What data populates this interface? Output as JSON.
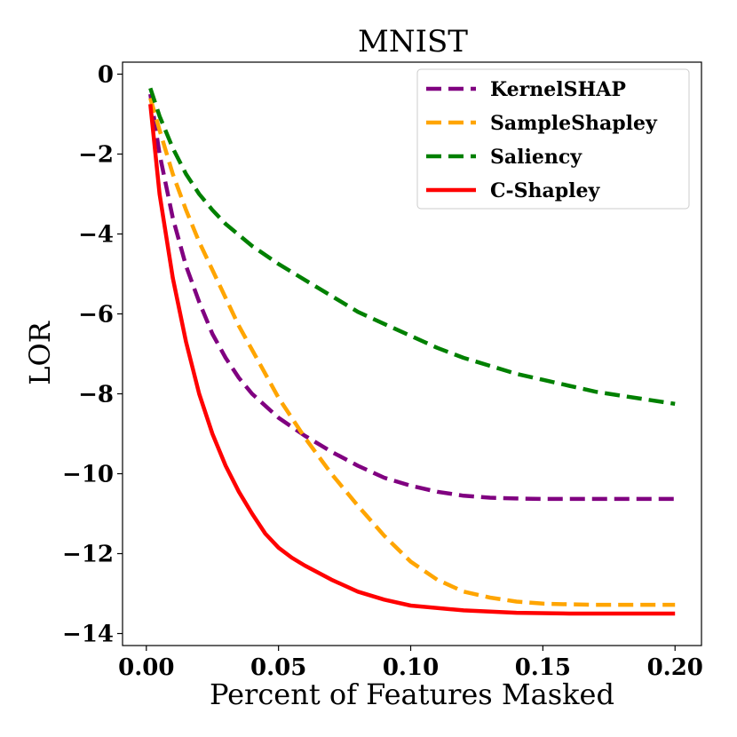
{
  "chart_data": {
    "type": "line",
    "title": "MNIST",
    "xlabel": "Percent of Features Masked",
    "ylabel": "LOR",
    "xlim": [
      -0.009,
      0.21
    ],
    "ylim": [
      -14.3,
      0.3
    ],
    "xticks": [
      0.0,
      0.05,
      0.1,
      0.15,
      0.2
    ],
    "xtick_labels": [
      "0.00",
      "0.05",
      "0.10",
      "0.15",
      "0.20"
    ],
    "yticks": [
      0,
      -2,
      -4,
      -6,
      -8,
      -10,
      -12,
      -14
    ],
    "ytick_labels": [
      "0",
      "−2",
      "−4",
      "−6",
      "−8",
      "−10",
      "−12",
      "−14"
    ],
    "legend_position": "top-right",
    "series": [
      {
        "name": "KernelSHAP",
        "color": "#800080",
        "style": "dashed",
        "x": [
          0.0015,
          0.005,
          0.01,
          0.015,
          0.02,
          0.025,
          0.03,
          0.035,
          0.04,
          0.05,
          0.06,
          0.07,
          0.08,
          0.09,
          0.1,
          0.11,
          0.12,
          0.13,
          0.14,
          0.15,
          0.16,
          0.17,
          0.18,
          0.19,
          0.2
        ],
        "y": [
          -0.5,
          -2.0,
          -3.6,
          -4.8,
          -5.7,
          -6.5,
          -7.1,
          -7.6,
          -8.0,
          -8.6,
          -9.05,
          -9.45,
          -9.8,
          -10.1,
          -10.3,
          -10.45,
          -10.55,
          -10.6,
          -10.62,
          -10.63,
          -10.63,
          -10.63,
          -10.63,
          -10.63,
          -10.63
        ]
      },
      {
        "name": "SampleShapley",
        "color": "#FFA500",
        "style": "dashed",
        "x": [
          0.0015,
          0.005,
          0.01,
          0.015,
          0.02,
          0.025,
          0.03,
          0.035,
          0.04,
          0.045,
          0.05,
          0.06,
          0.07,
          0.08,
          0.09,
          0.1,
          0.11,
          0.12,
          0.13,
          0.14,
          0.15,
          0.16,
          0.17,
          0.18,
          0.19,
          0.2
        ],
        "y": [
          -0.6,
          -1.4,
          -2.5,
          -3.4,
          -4.2,
          -4.9,
          -5.6,
          -6.3,
          -6.9,
          -7.5,
          -8.1,
          -9.1,
          -10.0,
          -10.8,
          -11.55,
          -12.2,
          -12.65,
          -12.95,
          -13.1,
          -13.2,
          -13.25,
          -13.27,
          -13.28,
          -13.28,
          -13.28,
          -13.28
        ]
      },
      {
        "name": "Saliency",
        "color": "#008000",
        "style": "dashed",
        "x": [
          0.0015,
          0.005,
          0.01,
          0.015,
          0.02,
          0.025,
          0.03,
          0.04,
          0.05,
          0.06,
          0.07,
          0.08,
          0.09,
          0.1,
          0.11,
          0.12,
          0.13,
          0.14,
          0.15,
          0.16,
          0.17,
          0.18,
          0.19,
          0.2
        ],
        "y": [
          -0.35,
          -1.05,
          -1.85,
          -2.5,
          -3.0,
          -3.4,
          -3.75,
          -4.3,
          -4.75,
          -5.15,
          -5.55,
          -5.95,
          -6.25,
          -6.55,
          -6.85,
          -7.1,
          -7.3,
          -7.5,
          -7.65,
          -7.8,
          -7.95,
          -8.05,
          -8.15,
          -8.25
        ]
      },
      {
        "name": "C-Shapley",
        "color": "#FF0000",
        "style": "solid",
        "x": [
          0.0015,
          0.005,
          0.01,
          0.015,
          0.02,
          0.025,
          0.03,
          0.035,
          0.04,
          0.045,
          0.05,
          0.055,
          0.06,
          0.07,
          0.08,
          0.09,
          0.1,
          0.12,
          0.14,
          0.16,
          0.18,
          0.2
        ],
        "y": [
          -0.75,
          -3.0,
          -5.1,
          -6.7,
          -8.0,
          -9.0,
          -9.8,
          -10.45,
          -11.0,
          -11.5,
          -11.85,
          -12.1,
          -12.3,
          -12.65,
          -12.95,
          -13.15,
          -13.3,
          -13.42,
          -13.48,
          -13.5,
          -13.5,
          -13.5
        ]
      }
    ]
  }
}
